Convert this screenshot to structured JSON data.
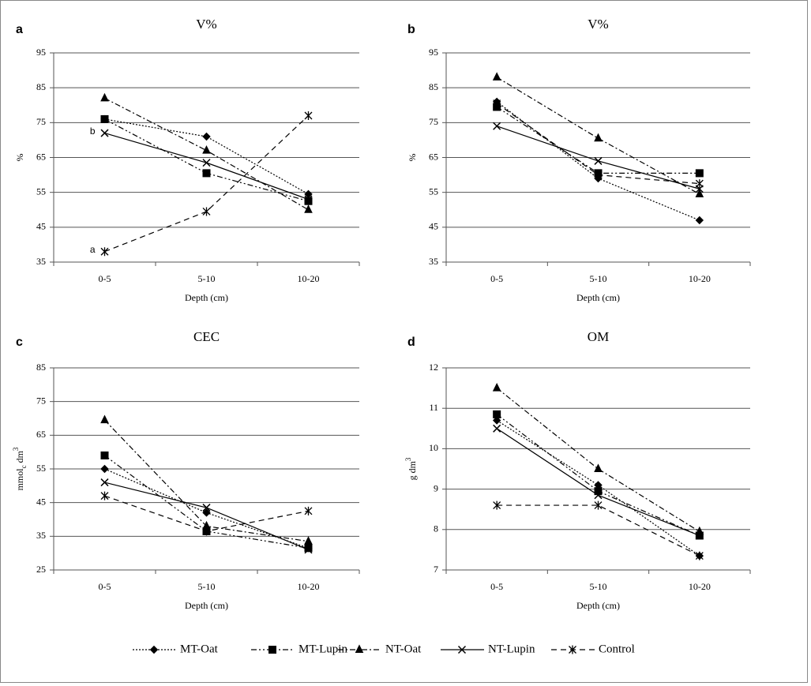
{
  "chart_data": [
    {
      "type": "line",
      "panel": "a",
      "title": "V%",
      "x_label": "Depth (cm)",
      "y_label": [
        {
          "text": "%"
        }
      ],
      "categories": [
        "0-5",
        "5-10",
        "10-20"
      ],
      "ylim": [
        35,
        95
      ],
      "yticks": [
        35,
        45,
        55,
        65,
        75,
        85,
        95
      ],
      "grid": true,
      "annotations": [
        {
          "text": "b"
        },
        {
          "text": "a"
        }
      ],
      "series": [
        {
          "name": "MT-Oat",
          "color": "#000000",
          "dash": "2,2",
          "marker": "diamond",
          "values": [
            76,
            71,
            54.5
          ]
        },
        {
          "name": "MT-Lupin",
          "color": "#000000",
          "dash": "7,3,2,3,2,3",
          "marker": "square",
          "values": [
            76,
            60.5,
            52.5
          ]
        },
        {
          "name": "NT-Oat",
          "color": "#000000",
          "dash": "7,3,2,3",
          "marker": "triangle",
          "values": [
            82,
            67,
            50
          ]
        },
        {
          "name": "NT-Lupin",
          "color": "#000000",
          "dash": "none",
          "marker": "x",
          "values": [
            72,
            63.5,
            53
          ]
        },
        {
          "name": "Control",
          "color": "#000000",
          "dash": "7,5",
          "marker": "star",
          "values": [
            38,
            49.5,
            77
          ]
        }
      ]
    },
    {
      "type": "line",
      "panel": "b",
      "title": "V%",
      "x_label": "Depth (cm)",
      "y_label": [
        {
          "text": "%"
        }
      ],
      "categories": [
        "0-5",
        "5-10",
        "10-20"
      ],
      "ylim": [
        35,
        95
      ],
      "yticks": [
        35,
        45,
        55,
        65,
        75,
        85,
        95
      ],
      "grid": true,
      "series": [
        {
          "values": [
            81,
            59,
            47
          ]
        },
        {
          "values": [
            79.5,
            60.5,
            60.5
          ]
        },
        {
          "values": [
            88,
            70.5,
            54.5
          ]
        },
        {
          "values": [
            74,
            64,
            56
          ]
        },
        {
          "values": [
            80.5,
            60,
            57.5
          ]
        }
      ]
    },
    {
      "type": "line",
      "panel": "c",
      "title": "CEC",
      "x_label": "Depth (cm)",
      "y_label": [
        {
          "text": "mmol"
        },
        {
          "text": "c",
          "shift": "sub"
        },
        {
          "text": " dm"
        },
        {
          "text": "3",
          "shift": "super"
        }
      ],
      "categories": [
        "0-5",
        "5-10",
        "10-20"
      ],
      "ylim": [
        25,
        85
      ],
      "yticks": [
        25,
        35,
        45,
        55,
        65,
        75,
        85
      ],
      "grid": true,
      "series": [
        {
          "values": [
            55,
            42,
            31.5
          ]
        },
        {
          "values": [
            59,
            36.5,
            31.5
          ]
        },
        {
          "values": [
            69.5,
            38,
            33.5
          ]
        },
        {
          "values": [
            51,
            43.5,
            31
          ]
        },
        {
          "values": [
            47,
            36.5,
            42.5
          ]
        }
      ]
    },
    {
      "type": "line",
      "panel": "d",
      "title": "OM",
      "x_label": "Depth (cm)",
      "y_label": [
        {
          "text": "g dm"
        },
        {
          "text": "3",
          "shift": "super"
        }
      ],
      "categories": [
        "0-5",
        "5-10",
        "10-20"
      ],
      "ylim": [
        7,
        12
      ],
      "yticks": [
        7,
        8,
        9,
        10,
        11,
        12
      ],
      "grid": true,
      "series": [
        {
          "values": [
            10.7,
            9.1,
            7.35
          ]
        },
        {
          "values": [
            10.85,
            8.95,
            7.85
          ]
        },
        {
          "values": [
            11.5,
            9.5,
            7.95
          ]
        },
        {
          "values": [
            10.5,
            8.85,
            7.85
          ]
        },
        {
          "values": [
            8.6,
            8.6,
            7.35
          ]
        }
      ]
    }
  ]
}
